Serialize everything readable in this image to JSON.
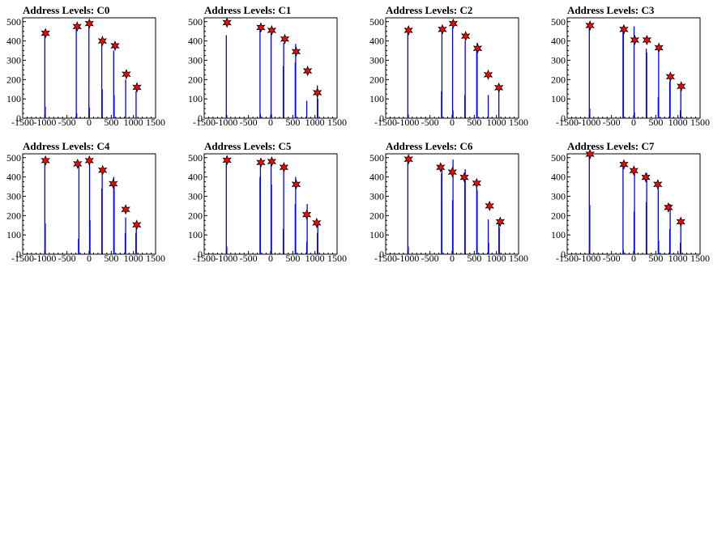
{
  "chart_data": [
    {
      "type": "bar",
      "title": "Address Levels: C0",
      "xlim": [
        -1500,
        1500
      ],
      "ylim": [
        0,
        520
      ],
      "xticks": [
        -1500,
        -1000,
        -500,
        0,
        500,
        1000,
        1500
      ],
      "yticks": [
        0,
        100,
        200,
        300,
        400,
        500
      ],
      "histogram": [
        {
          "x": -1000,
          "y": 430
        },
        {
          "x": -990,
          "y": 60
        },
        {
          "x": -290,
          "y": 465
        },
        {
          "x": -280,
          "y": 25
        },
        {
          "x": -5,
          "y": 480
        },
        {
          "x": 5,
          "y": 55
        },
        {
          "x": 285,
          "y": 390
        },
        {
          "x": 295,
          "y": 150
        },
        {
          "x": 555,
          "y": 350
        },
        {
          "x": 565,
          "y": 120
        },
        {
          "x": 825,
          "y": 200
        },
        {
          "x": 1060,
          "y": 140
        }
      ],
      "peaks": [
        {
          "x": -985,
          "y": 440
        },
        {
          "x": -270,
          "y": 475
        },
        {
          "x": 5,
          "y": 490
        },
        {
          "x": 300,
          "y": 400
        },
        {
          "x": 585,
          "y": 375
        },
        {
          "x": 840,
          "y": 228
        },
        {
          "x": 1080,
          "y": 160
        }
      ]
    },
    {
      "type": "bar",
      "title": "Address Levels: C1",
      "xlim": [
        -1500,
        1500
      ],
      "ylim": [
        0,
        520
      ],
      "xticks": [
        -1500,
        -1000,
        -500,
        0,
        500,
        1000,
        1500
      ],
      "yticks": [
        0,
        100,
        200,
        300,
        400,
        500
      ],
      "histogram": [
        {
          "x": -1000,
          "y": 430
        },
        {
          "x": -990,
          "y": 15
        },
        {
          "x": -240,
          "y": 460
        },
        {
          "x": -230,
          "y": 20
        },
        {
          "x": 10,
          "y": 440
        },
        {
          "x": 20,
          "y": 20
        },
        {
          "x": 285,
          "y": 270
        },
        {
          "x": 295,
          "y": 390
        },
        {
          "x": 555,
          "y": 290
        },
        {
          "x": 565,
          "y": 385
        },
        {
          "x": 815,
          "y": 90
        },
        {
          "x": 1055,
          "y": 170
        },
        {
          "x": 1065,
          "y": 100
        }
      ],
      "peaks": [
        {
          "x": -985,
          "y": 495
        },
        {
          "x": -220,
          "y": 470
        },
        {
          "x": 25,
          "y": 455
        },
        {
          "x": 320,
          "y": 410
        },
        {
          "x": 575,
          "y": 345
        },
        {
          "x": 835,
          "y": 245
        },
        {
          "x": 1055,
          "y": 132
        }
      ]
    },
    {
      "type": "bar",
      "title": "Address Levels: C2",
      "xlim": [
        -1500,
        1500
      ],
      "ylim": [
        0,
        520
      ],
      "xticks": [
        -1500,
        -1000,
        -500,
        0,
        500,
        1000,
        1500
      ],
      "yticks": [
        0,
        100,
        200,
        300,
        400,
        500
      ],
      "histogram": [
        {
          "x": -1000,
          "y": 440
        },
        {
          "x": -990,
          "y": 20
        },
        {
          "x": -240,
          "y": 140
        },
        {
          "x": -230,
          "y": 450
        },
        {
          "x": 10,
          "y": 470
        },
        {
          "x": 20,
          "y": 40
        },
        {
          "x": 285,
          "y": 120
        },
        {
          "x": 295,
          "y": 400
        },
        {
          "x": 555,
          "y": 350
        },
        {
          "x": 565,
          "y": 390
        },
        {
          "x": 815,
          "y": 120
        },
        {
          "x": 1055,
          "y": 155
        }
      ],
      "peaks": [
        {
          "x": -985,
          "y": 455
        },
        {
          "x": -220,
          "y": 460
        },
        {
          "x": 25,
          "y": 490
        },
        {
          "x": 305,
          "y": 425
        },
        {
          "x": 575,
          "y": 362
        },
        {
          "x": 815,
          "y": 225
        },
        {
          "x": 1055,
          "y": 158
        }
      ]
    },
    {
      "type": "bar",
      "title": "Address Levels: C3",
      "xlim": [
        -1500,
        1500
      ],
      "ylim": [
        0,
        520
      ],
      "xticks": [
        -1500,
        -1000,
        -500,
        0,
        500,
        1000,
        1500
      ],
      "yticks": [
        0,
        100,
        200,
        300,
        400,
        500
      ],
      "histogram": [
        {
          "x": -1000,
          "y": 470
        },
        {
          "x": -990,
          "y": 50
        },
        {
          "x": -240,
          "y": 470
        },
        {
          "x": -230,
          "y": 480
        },
        {
          "x": 10,
          "y": 475
        },
        {
          "x": 20,
          "y": 30
        },
        {
          "x": 285,
          "y": 360
        },
        {
          "x": 295,
          "y": 340
        },
        {
          "x": 555,
          "y": 110
        },
        {
          "x": 565,
          "y": 350
        },
        {
          "x": 815,
          "y": 190
        },
        {
          "x": 825,
          "y": 200
        },
        {
          "x": 1055,
          "y": 40
        },
        {
          "x": 1065,
          "y": 150
        }
      ],
      "peaks": [
        {
          "x": -985,
          "y": 480
        },
        {
          "x": -220,
          "y": 460
        },
        {
          "x": 25,
          "y": 405
        },
        {
          "x": 300,
          "y": 405
        },
        {
          "x": 570,
          "y": 365
        },
        {
          "x": 830,
          "y": 215
        },
        {
          "x": 1075,
          "y": 165
        }
      ]
    },
    {
      "type": "bar",
      "title": "Address Levels: C4",
      "xlim": [
        -1500,
        1500
      ],
      "ylim": [
        0,
        520
      ],
      "xticks": [
        -1500,
        -1000,
        -500,
        0,
        500,
        1000,
        1500
      ],
      "yticks": [
        0,
        100,
        200,
        300,
        400,
        500
      ],
      "histogram": [
        {
          "x": -1000,
          "y": 475
        },
        {
          "x": -990,
          "y": 160
        },
        {
          "x": -240,
          "y": 80
        },
        {
          "x": -230,
          "y": 460
        },
        {
          "x": 10,
          "y": 475
        },
        {
          "x": 20,
          "y": 175
        },
        {
          "x": 285,
          "y": 340
        },
        {
          "x": 295,
          "y": 430
        },
        {
          "x": 555,
          "y": 400
        },
        {
          "x": 565,
          "y": 360
        },
        {
          "x": 815,
          "y": 110
        },
        {
          "x": 825,
          "y": 190
        },
        {
          "x": 1055,
          "y": 110
        },
        {
          "x": 1065,
          "y": 140
        }
      ],
      "peaks": [
        {
          "x": -985,
          "y": 485
        },
        {
          "x": -260,
          "y": 468
        },
        {
          "x": 5,
          "y": 485
        },
        {
          "x": 305,
          "y": 435
        },
        {
          "x": 545,
          "y": 365
        },
        {
          "x": 825,
          "y": 232
        },
        {
          "x": 1075,
          "y": 152
        }
      ]
    },
    {
      "type": "bar",
      "title": "Address Levels: C5",
      "xlim": [
        -1500,
        1500
      ],
      "ylim": [
        0,
        520
      ],
      "xticks": [
        -1500,
        -1000,
        -500,
        0,
        500,
        1000,
        1500
      ],
      "yticks": [
        0,
        100,
        200,
        300,
        400,
        500
      ],
      "histogram": [
        {
          "x": -1000,
          "y": 470
        },
        {
          "x": -990,
          "y": 40
        },
        {
          "x": -240,
          "y": 400
        },
        {
          "x": -230,
          "y": 460
        },
        {
          "x": 10,
          "y": 470
        },
        {
          "x": 20,
          "y": 360
        },
        {
          "x": 285,
          "y": 130
        },
        {
          "x": 295,
          "y": 430
        },
        {
          "x": 555,
          "y": 260
        },
        {
          "x": 565,
          "y": 400
        },
        {
          "x": 815,
          "y": 65
        },
        {
          "x": 825,
          "y": 260
        },
        {
          "x": 1055,
          "y": 110
        },
        {
          "x": 1065,
          "y": 170
        }
      ],
      "peaks": [
        {
          "x": -985,
          "y": 487
        },
        {
          "x": -220,
          "y": 475
        },
        {
          "x": 25,
          "y": 480
        },
        {
          "x": 300,
          "y": 450
        },
        {
          "x": 575,
          "y": 362
        },
        {
          "x": 815,
          "y": 205
        },
        {
          "x": 1040,
          "y": 162
        }
      ]
    },
    {
      "type": "bar",
      "title": "Address Levels: C6",
      "xlim": [
        -1500,
        1500
      ],
      "ylim": [
        0,
        520
      ],
      "xticks": [
        -1500,
        -1000,
        -500,
        0,
        500,
        1000,
        1500
      ],
      "yticks": [
        0,
        100,
        200,
        300,
        400,
        500
      ],
      "histogram": [
        {
          "x": -1000,
          "y": 480
        },
        {
          "x": -990,
          "y": 40
        },
        {
          "x": -240,
          "y": 420
        },
        {
          "x": -230,
          "y": 460
        },
        {
          "x": 10,
          "y": 280
        },
        {
          "x": 20,
          "y": 490
        },
        {
          "x": 285,
          "y": 420
        },
        {
          "x": 295,
          "y": 440
        },
        {
          "x": 555,
          "y": 390
        },
        {
          "x": 565,
          "y": 330
        },
        {
          "x": 815,
          "y": 180
        },
        {
          "x": 825,
          "y": 60
        },
        {
          "x": 1055,
          "y": 160
        },
        {
          "x": 1065,
          "y": 140
        }
      ],
      "peaks": [
        {
          "x": -985,
          "y": 492
        },
        {
          "x": -260,
          "y": 450
        },
        {
          "x": 5,
          "y": 425
        },
        {
          "x": 275,
          "y": 398
        },
        {
          "x": 555,
          "y": 368
        },
        {
          "x": 845,
          "y": 250
        },
        {
          "x": 1085,
          "y": 168
        }
      ]
    },
    {
      "type": "bar",
      "title": "Address Levels: C7",
      "xlim": [
        -1500,
        1500
      ],
      "ylim": [
        0,
        520
      ],
      "xticks": [
        -1500,
        -1000,
        -500,
        0,
        500,
        1000,
        1500
      ],
      "yticks": [
        0,
        100,
        200,
        300,
        400,
        500
      ],
      "histogram": [
        {
          "x": -1000,
          "y": 510
        },
        {
          "x": -990,
          "y": 255
        },
        {
          "x": -240,
          "y": 470
        },
        {
          "x": -230,
          "y": 20
        },
        {
          "x": 10,
          "y": 220
        },
        {
          "x": 20,
          "y": 450
        },
        {
          "x": 285,
          "y": 270
        },
        {
          "x": 295,
          "y": 420
        },
        {
          "x": 555,
          "y": 380
        },
        {
          "x": 565,
          "y": 70
        },
        {
          "x": 815,
          "y": 130
        },
        {
          "x": 825,
          "y": 260
        },
        {
          "x": 1055,
          "y": 60
        },
        {
          "x": 1065,
          "y": 170
        }
      ],
      "peaks": [
        {
          "x": -985,
          "y": 518
        },
        {
          "x": -220,
          "y": 465
        },
        {
          "x": 5,
          "y": 433
        },
        {
          "x": 275,
          "y": 398
        },
        {
          "x": 545,
          "y": 362
        },
        {
          "x": 785,
          "y": 242
        },
        {
          "x": 1065,
          "y": 168
        }
      ]
    }
  ]
}
